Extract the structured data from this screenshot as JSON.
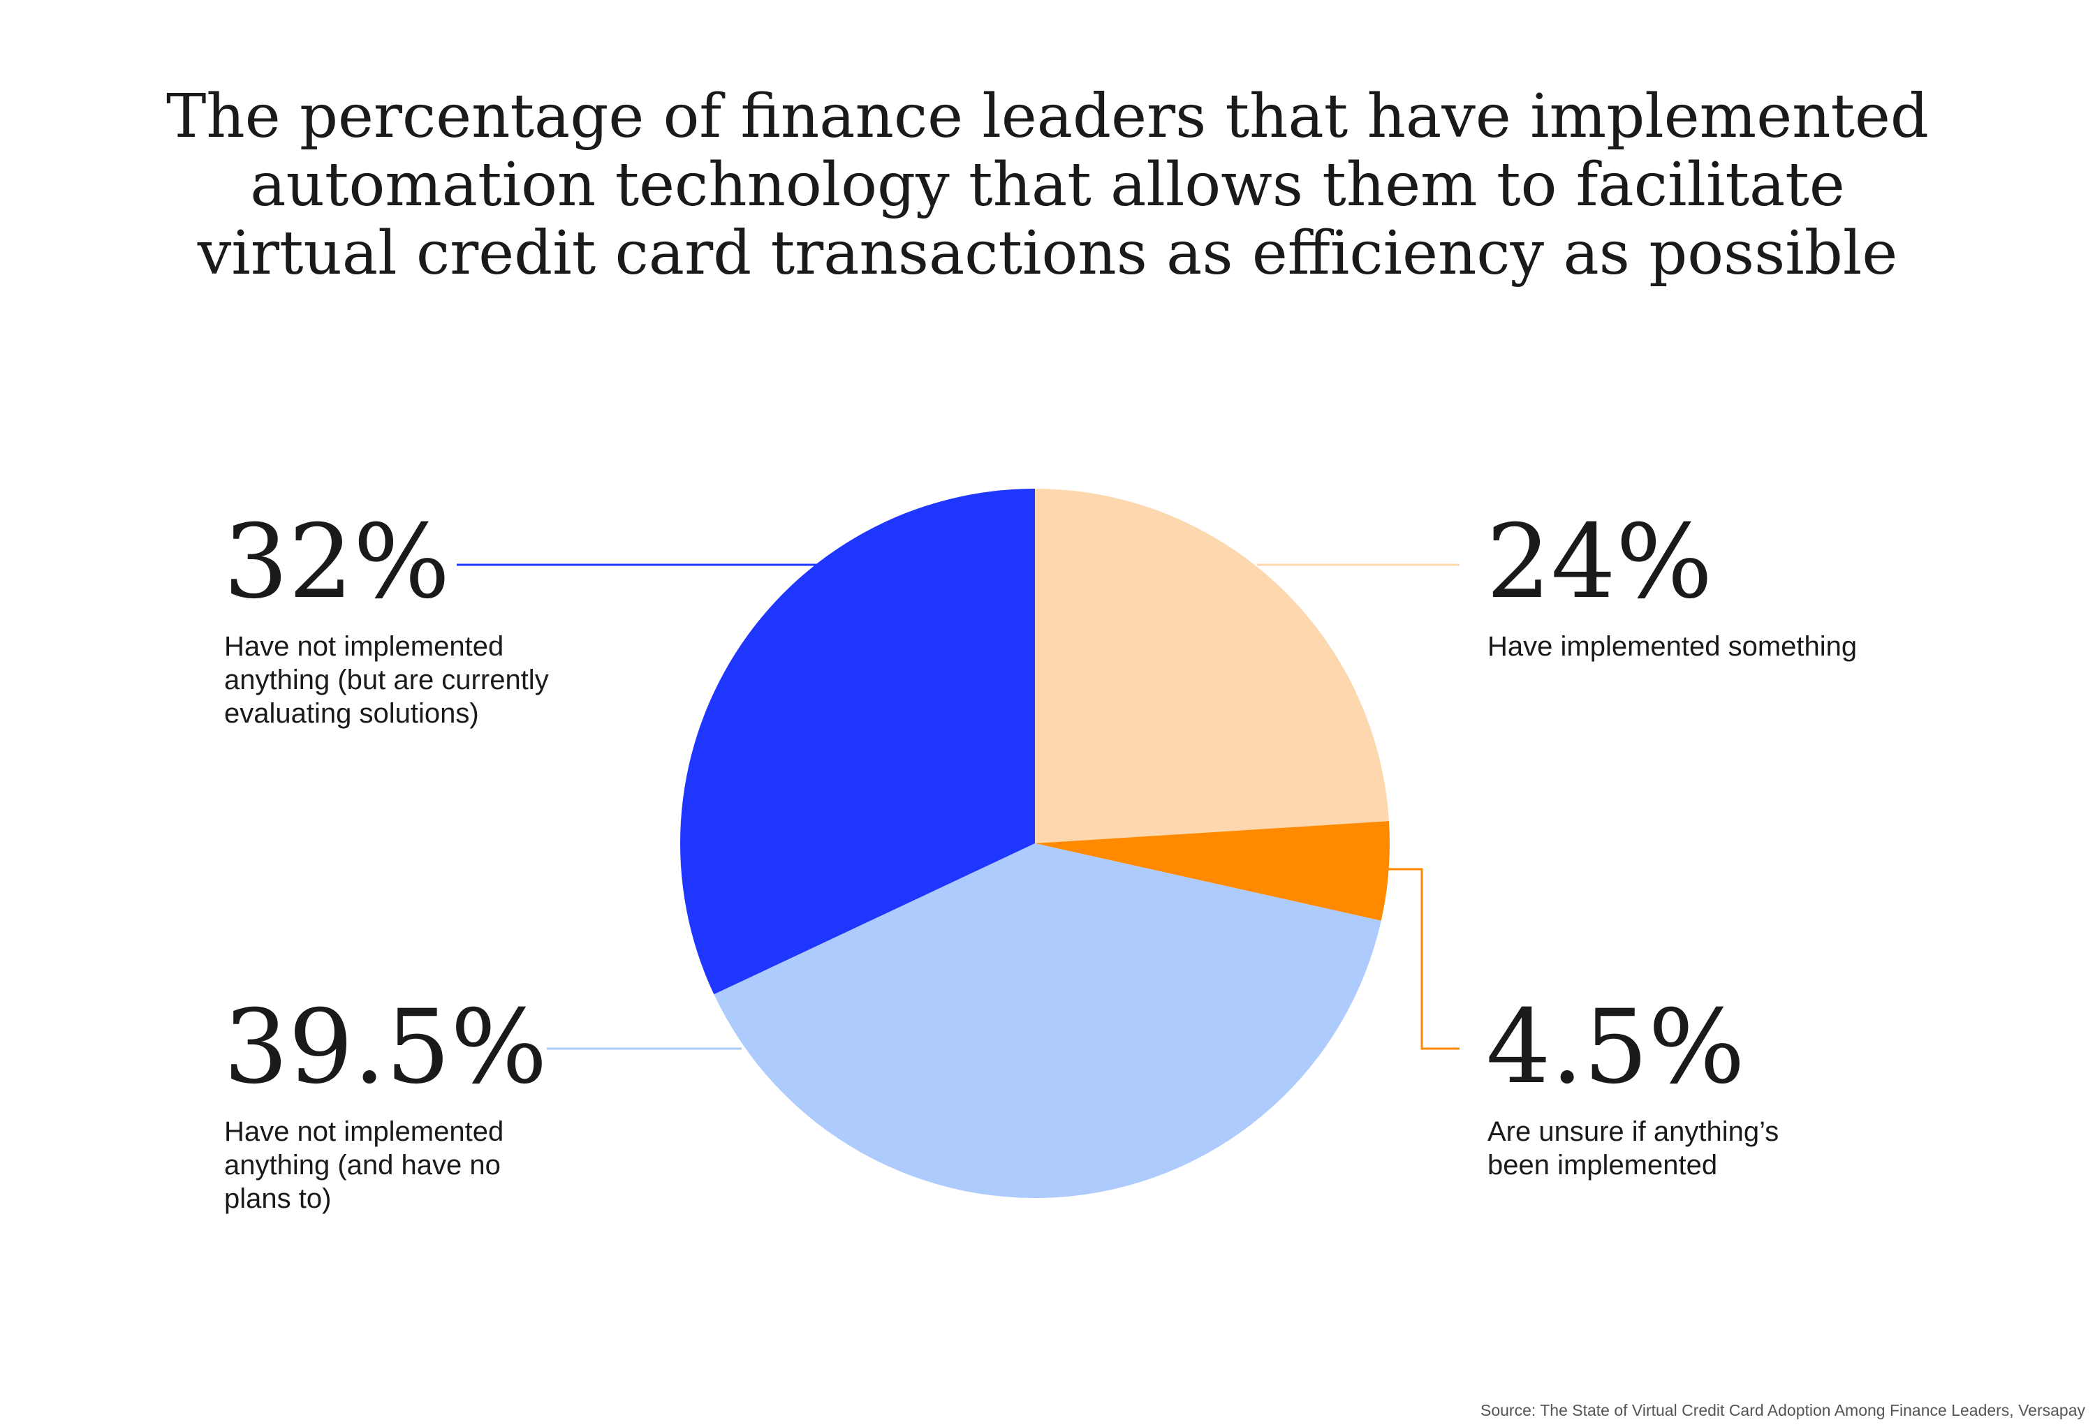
{
  "title_lines": [
    "The percentage of finance leaders that have implemented",
    "automation technology that allows them to facilitate",
    "virtual credit card transactions as efficiency as possible"
  ],
  "source": "Source: The State of Virtual Credit Card Adoption Among Finance Leaders, Versapay",
  "chart_data": {
    "type": "pie",
    "title": "The percentage of finance leaders that have implemented automation technology that allows them to facilitate virtual credit card transactions as efficiency as possible",
    "start": "12 o'clock, clockwise",
    "slices": [
      {
        "value": 24,
        "label": "24%",
        "description": "Have implemented something",
        "color": "#FDD8AE"
      },
      {
        "value": 4.5,
        "label": "4.5%",
        "description": "Are unsure if anything’s\nbeen implemented",
        "color": "#FF8A00"
      },
      {
        "value": 39.5,
        "label": "39.5%",
        "description": "Have not implemented\nanything (and have no\nplans to)",
        "color": "#AECBFD"
      },
      {
        "value": 32,
        "label": "32%",
        "description": "Have not implemented\nanything (but are currently\nevaluating solutions)",
        "color": "#1F36FF"
      }
    ]
  }
}
